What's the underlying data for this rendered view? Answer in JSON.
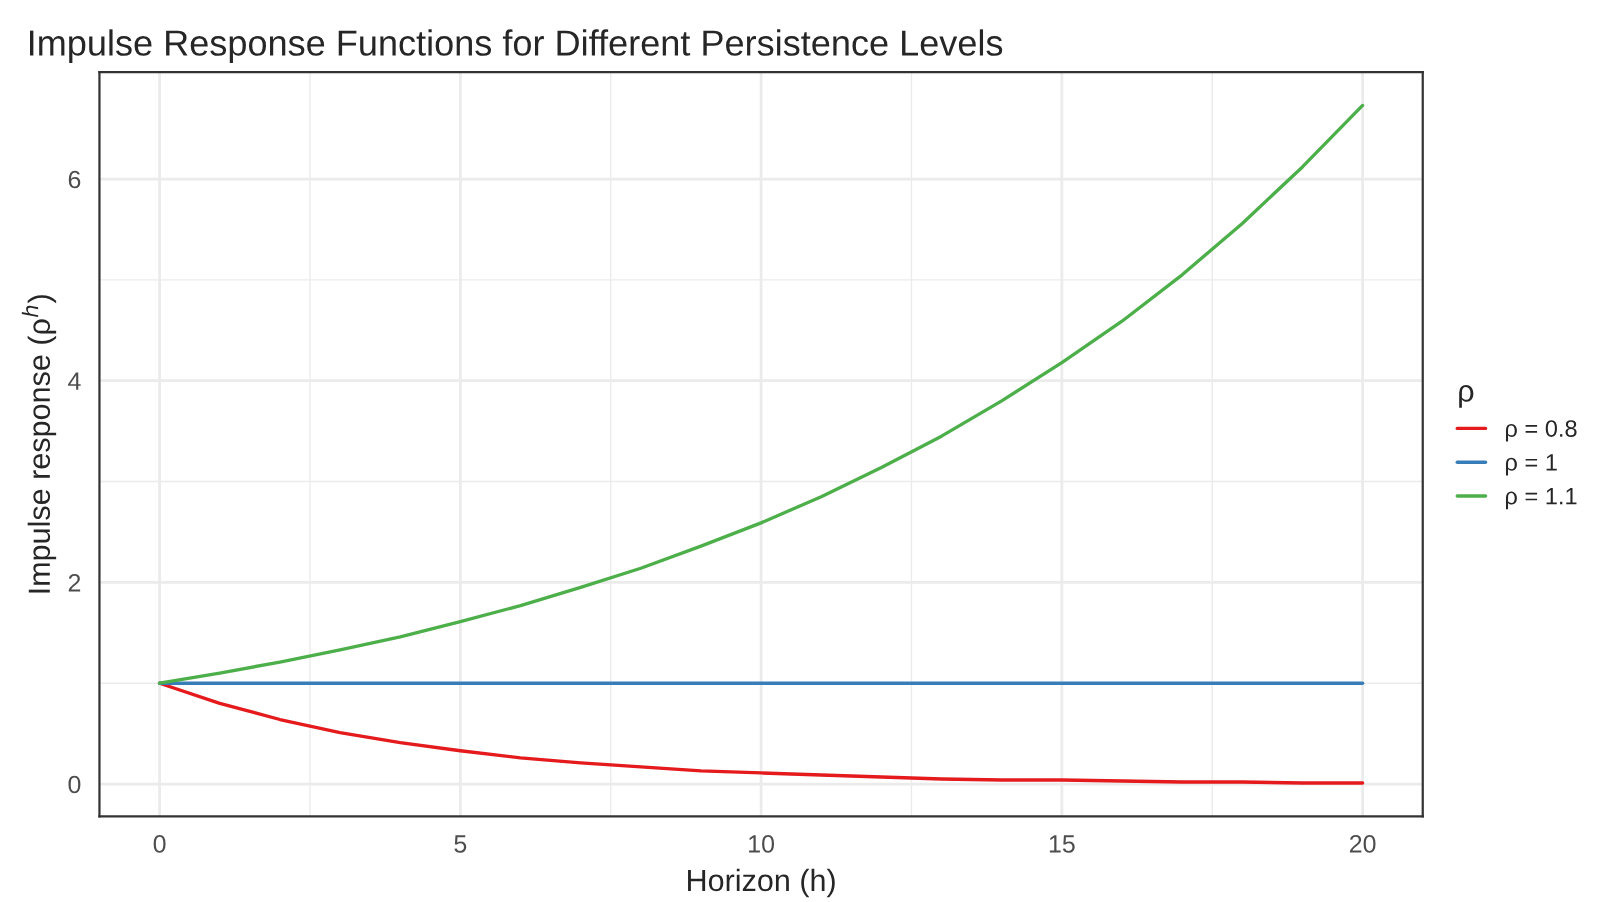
{
  "chart_data": {
    "type": "line",
    "title": "Impulse Response Functions for Different Persistence Levels",
    "xlabel": "Horizon (h)",
    "ylabel": "Impulse response (ρ$^{h}$)",
    "legend_title": "ρ",
    "x": [
      0,
      1,
      2,
      3,
      4,
      5,
      6,
      7,
      8,
      9,
      10,
      11,
      12,
      13,
      14,
      15,
      16,
      17,
      18,
      19,
      20
    ],
    "series": [
      {
        "name": "ρ = 0.8",
        "color": "#e41a1c",
        "values": [
          1,
          0.8,
          0.64,
          0.51,
          0.41,
          0.33,
          0.26,
          0.21,
          0.17,
          0.13,
          0.11,
          0.09,
          0.07,
          0.05,
          0.04,
          0.04,
          0.03,
          0.02,
          0.02,
          0.01,
          0.01
        ]
      },
      {
        "name": "ρ = 1",
        "color": "#377eb8",
        "values": [
          1,
          1,
          1,
          1,
          1,
          1,
          1,
          1,
          1,
          1,
          1,
          1,
          1,
          1,
          1,
          1,
          1,
          1,
          1,
          1,
          1
        ]
      },
      {
        "name": "ρ = 1.1",
        "color": "#4daf4a",
        "values": [
          1,
          1.1,
          1.21,
          1.33,
          1.46,
          1.61,
          1.77,
          1.95,
          2.14,
          2.36,
          2.59,
          2.85,
          3.14,
          3.45,
          3.8,
          4.18,
          4.59,
          5.05,
          5.56,
          6.12,
          6.73
        ]
      }
    ],
    "xlim": [
      -1,
      21
    ],
    "xticks": [
      0,
      5,
      10,
      15,
      20
    ],
    "ylim": [
      -0.32,
      7.06
    ],
    "yticks": [
      0,
      2,
      4,
      6
    ],
    "grid": true,
    "legend": "right",
    "marker": "none",
    "line_style": "solid"
  }
}
